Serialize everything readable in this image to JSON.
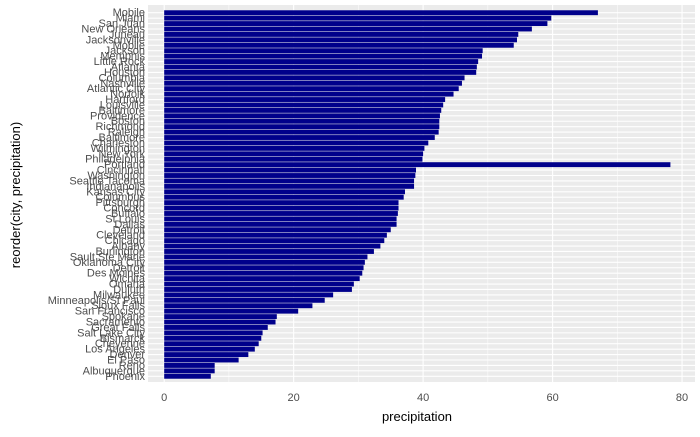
{
  "chart_data": {
    "type": "bar",
    "orientation": "horizontal",
    "xlabel": "precipitation",
    "ylabel": "reorder(city, precipitation)",
    "xlim": [
      -2.5,
      82
    ],
    "xticks": [
      0,
      20,
      40,
      60,
      80
    ],
    "grid": true,
    "bar_color": "#00008B",
    "panel_color": "#EBEBEB",
    "categories": [
      "Mobile",
      "Miami",
      "San Juan",
      "New Orleans",
      "Juneau",
      "Jacksonville",
      "Mobile",
      "Jackson",
      "Memphis",
      "Little Rock",
      "Atlanta",
      "Houston",
      "Columbia",
      "Nashville",
      "Atlantic City",
      "Norfolk",
      "Hartford",
      "Louisville",
      "Baltimore",
      "Providence",
      "Boston",
      "Richmond",
      "Raleigh",
      "Baltimore",
      "Charleston",
      "Wilmington",
      "New York",
      "Philadelphia",
      "Portland",
      "Cincinnati",
      "Washington",
      "Seattle Tacoma",
      "Indianapolis",
      "Kansas City",
      "Columbus",
      "Pittsburgh",
      "Concord",
      "Buffalo",
      "St Louis",
      "Dallas",
      "Detroit",
      "Cleveland",
      "Chicago",
      "Albany",
      "Burlington",
      "Sault Ste Marie",
      "Oklahoma City",
      "Detroit",
      "Des Moines",
      "Wichita",
      "Omaha",
      "Duluth",
      "Milwaukee",
      "Minneapolis/St Paul",
      "Sioux Falls",
      "San Francisco",
      "Spokane",
      "Sacramento",
      "Great Falls",
      "Salt Lake City",
      "Bismarck",
      "Cheyenne",
      "Los Angeles",
      "Denver",
      "El Paso",
      "Reno",
      "Albuquerque",
      "Phoenix"
    ],
    "values": [
      67.0,
      59.8,
      59.2,
      56.8,
      54.7,
      54.5,
      54.0,
      49.2,
      49.1,
      48.5,
      48.3,
      48.2,
      46.4,
      46.0,
      45.5,
      44.7,
      43.4,
      43.1,
      42.8,
      42.6,
      42.5,
      42.5,
      42.4,
      41.8,
      40.8,
      40.2,
      40.0,
      39.9,
      78.2,
      38.9,
      38.8,
      38.6,
      38.6,
      37.2,
      37.0,
      36.2,
      36.2,
      36.1,
      35.9,
      35.9,
      35.0,
      34.4,
      34.0,
      33.4,
      32.4,
      31.4,
      31.0,
      30.8,
      30.6,
      30.2,
      29.3,
      29.0,
      26.1,
      24.8,
      22.9,
      20.7,
      17.4,
      17.2,
      16.0,
      15.2,
      15.0,
      14.6,
      14.0,
      13.0,
      11.5,
      7.8,
      7.8,
      7.2
    ]
  }
}
